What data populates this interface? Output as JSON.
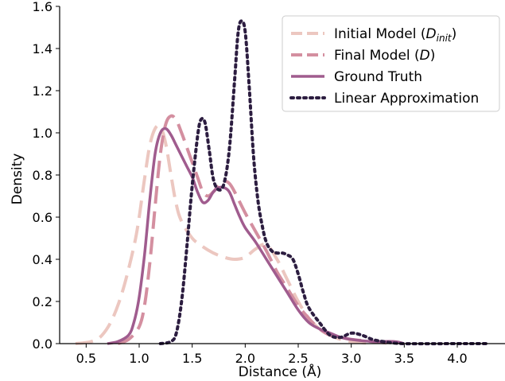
{
  "chart_data": {
    "type": "line",
    "xlabel": "Distance (Å)",
    "ylabel": "Density",
    "xlim": [
      0.25,
      4.45
    ],
    "ylim": [
      0.0,
      1.6
    ],
    "xticks": [
      "0.5",
      "1.0",
      "1.5",
      "2.0",
      "2.5",
      "3.0",
      "3.5",
      "4.0"
    ],
    "yticks": [
      "0.0",
      "0.2",
      "0.4",
      "0.6",
      "0.8",
      "1.0",
      "1.2",
      "1.4",
      "1.6"
    ],
    "grid": false,
    "legend_position": "top-right",
    "series": [
      {
        "name": "Initial Model (D_init)",
        "name_main": "Initial Model (",
        "name_sym": "D",
        "name_sub": "init",
        "name_end": ")",
        "color": "#ecc7c0",
        "style": "dashed",
        "x": [
          0.4,
          0.55,
          0.65,
          0.75,
          0.85,
          0.95,
          1.0,
          1.05,
          1.1,
          1.15,
          1.2,
          1.25,
          1.3,
          1.35,
          1.4,
          1.5,
          1.6,
          1.7,
          1.8,
          1.9,
          2.0,
          2.1,
          2.2,
          2.3,
          2.4,
          2.5,
          2.6,
          2.7,
          2.8,
          2.9,
          3.0,
          3.2
        ],
        "y": [
          0.0,
          0.01,
          0.04,
          0.12,
          0.26,
          0.46,
          0.6,
          0.78,
          0.94,
          1.02,
          1.03,
          0.95,
          0.8,
          0.66,
          0.58,
          0.5,
          0.46,
          0.43,
          0.41,
          0.4,
          0.41,
          0.45,
          0.47,
          0.4,
          0.3,
          0.2,
          0.12,
          0.07,
          0.04,
          0.02,
          0.01,
          0.0
        ]
      },
      {
        "name": "Final Model (D)",
        "name_main": "Final Model (",
        "name_sym": "D",
        "name_sub": "",
        "name_end": ")",
        "color": "#d48fa0",
        "style": "dashed",
        "x": [
          0.8,
          0.9,
          1.0,
          1.05,
          1.1,
          1.15,
          1.2,
          1.25,
          1.3,
          1.35,
          1.4,
          1.45,
          1.5,
          1.55,
          1.6,
          1.65,
          1.7,
          1.75,
          1.8,
          1.85,
          1.9,
          2.0,
          2.1,
          2.2,
          2.3,
          2.4,
          2.5,
          2.6,
          2.7,
          2.8,
          2.9,
          3.0,
          3.2,
          3.4
        ],
        "y": [
          0.0,
          0.02,
          0.08,
          0.18,
          0.38,
          0.65,
          0.9,
          1.04,
          1.08,
          1.06,
          1.0,
          0.93,
          0.86,
          0.79,
          0.72,
          0.7,
          0.72,
          0.75,
          0.77,
          0.76,
          0.72,
          0.62,
          0.53,
          0.44,
          0.34,
          0.26,
          0.18,
          0.12,
          0.07,
          0.04,
          0.03,
          0.02,
          0.01,
          0.0
        ]
      },
      {
        "name": "Ground Truth",
        "color": "#a05c8e",
        "style": "solid",
        "x": [
          0.7,
          0.8,
          0.9,
          0.95,
          1.0,
          1.05,
          1.1,
          1.15,
          1.2,
          1.25,
          1.3,
          1.35,
          1.4,
          1.45,
          1.5,
          1.55,
          1.6,
          1.65,
          1.7,
          1.75,
          1.8,
          1.85,
          1.9,
          1.95,
          2.0,
          2.1,
          2.2,
          2.3,
          2.4,
          2.5,
          2.6,
          2.7,
          2.8,
          2.9,
          3.0,
          3.2,
          3.4,
          3.5
        ],
        "y": [
          0.0,
          0.01,
          0.04,
          0.1,
          0.22,
          0.42,
          0.68,
          0.9,
          1.0,
          1.02,
          0.99,
          0.94,
          0.89,
          0.84,
          0.79,
          0.72,
          0.67,
          0.68,
          0.72,
          0.74,
          0.74,
          0.72,
          0.66,
          0.6,
          0.55,
          0.48,
          0.4,
          0.32,
          0.24,
          0.16,
          0.1,
          0.07,
          0.05,
          0.03,
          0.02,
          0.01,
          0.01,
          0.0
        ]
      },
      {
        "name": "Linear Approximation",
        "color": "#2c1d40",
        "style": "dotted",
        "x": [
          1.2,
          1.3,
          1.35,
          1.4,
          1.45,
          1.5,
          1.55,
          1.58,
          1.62,
          1.66,
          1.7,
          1.75,
          1.8,
          1.85,
          1.9,
          1.93,
          1.96,
          2.0,
          2.04,
          2.08,
          2.12,
          2.16,
          2.2,
          2.25,
          2.3,
          2.35,
          2.4,
          2.45,
          2.5,
          2.55,
          2.6,
          2.7,
          2.8,
          2.9,
          3.0,
          3.1,
          3.2,
          3.3,
          3.5,
          4.0,
          4.3
        ],
        "y": [
          0.0,
          0.01,
          0.05,
          0.2,
          0.46,
          0.75,
          0.98,
          1.06,
          1.05,
          0.92,
          0.78,
          0.73,
          0.76,
          0.92,
          1.25,
          1.46,
          1.53,
          1.48,
          1.2,
          0.88,
          0.68,
          0.56,
          0.48,
          0.44,
          0.43,
          0.43,
          0.42,
          0.4,
          0.33,
          0.24,
          0.17,
          0.1,
          0.04,
          0.03,
          0.05,
          0.04,
          0.02,
          0.01,
          0.0,
          0.0,
          0.0
        ]
      }
    ]
  }
}
